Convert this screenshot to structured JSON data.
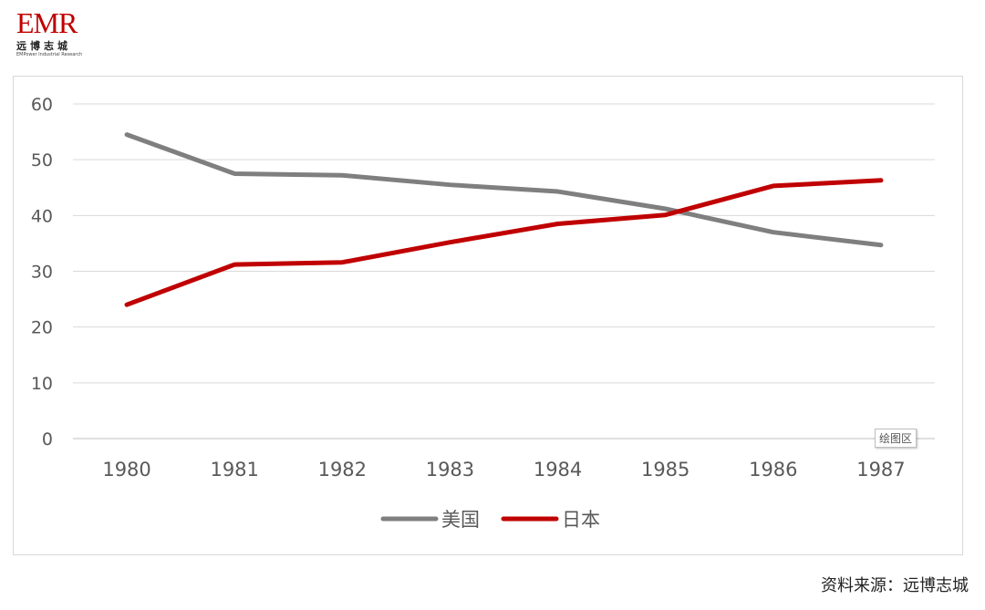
{
  "logo": {
    "mark": "EMR",
    "name_cn": "远博志城",
    "name_en": "EMPower Industrial Research"
  },
  "plot_area_badge": "绘图区",
  "source": "资料来源：远博志城",
  "chart_data": {
    "type": "line",
    "title": "",
    "xlabel": "",
    "ylabel": "",
    "categories": [
      "1980",
      "1981",
      "1982",
      "1983",
      "1984",
      "1985",
      "1986",
      "1987"
    ],
    "ylim": [
      0,
      60
    ],
    "yticks": [
      0,
      10,
      20,
      30,
      40,
      50,
      60
    ],
    "grid": true,
    "legend_position": "bottom",
    "series": [
      {
        "name": "美国",
        "color": "#7f7f7f",
        "values": [
          54.5,
          47.5,
          47.2,
          45.5,
          44.3,
          41.2,
          37.0,
          34.7
        ]
      },
      {
        "name": "日本",
        "color": "#c00000",
        "values": [
          24.0,
          31.2,
          31.6,
          35.2,
          38.5,
          40.1,
          45.3,
          46.3
        ]
      }
    ]
  }
}
